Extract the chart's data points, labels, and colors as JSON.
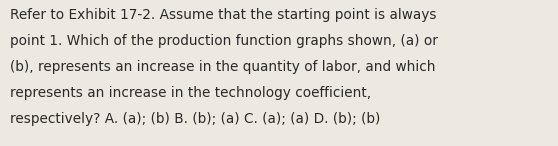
{
  "lines": [
    "Refer to Exhibit 17-2. Assume that the starting point is always",
    "point 1. Which of the production function graphs shown, (a) or",
    "(b), represents an increase in the quantity of labor, and which",
    "represents an increase in the technology coefficient,",
    "respectively? A. (a); (b) B. (b); (a) C. (a); (a) D. (b); (b)"
  ],
  "background_color": "#ede9e0",
  "text_color": "#2a2a2a",
  "font_size": 9.8,
  "fig_width": 5.58,
  "fig_height": 1.46
}
